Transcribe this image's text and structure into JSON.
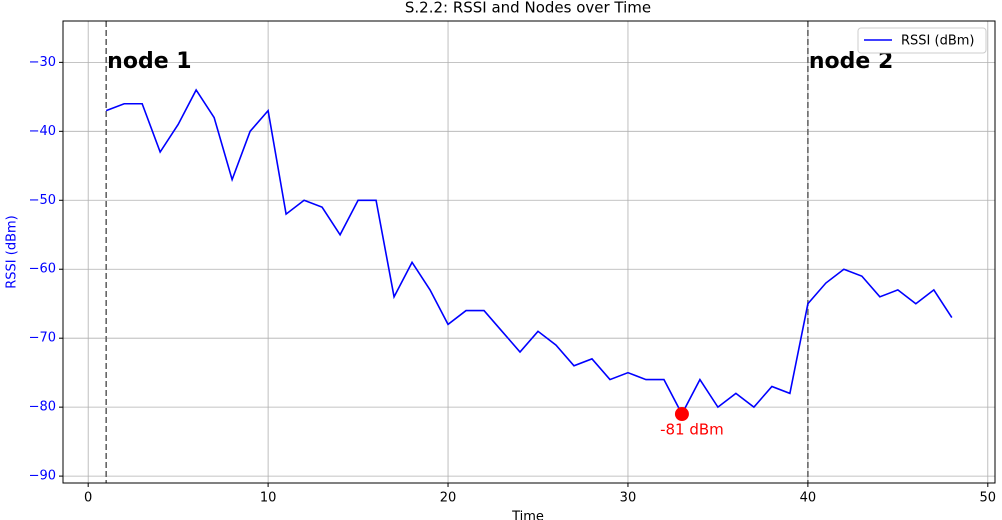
{
  "chart_data": {
    "type": "line",
    "title": "S.2.2: RSSI and Nodes over Time",
    "xlabel": "Time",
    "ylabel": "RSSI (dBm)",
    "x": [
      1,
      2,
      3,
      4,
      5,
      6,
      7,
      8,
      9,
      10,
      11,
      12,
      13,
      14,
      15,
      16,
      17,
      18,
      19,
      20,
      21,
      22,
      23,
      24,
      25,
      26,
      27,
      28,
      29,
      30,
      31,
      32,
      33,
      34,
      35,
      36,
      37,
      38,
      39,
      40,
      41,
      42,
      43,
      44,
      45,
      46,
      47,
      48
    ],
    "series": [
      {
        "name": "RSSI (dBm)",
        "color": "#0000ff",
        "values": [
          -37,
          -36,
          -36,
          -43,
          -39,
          -34,
          -38,
          -47,
          -40,
          -37,
          -52,
          -50,
          -51,
          -55,
          -50,
          -50,
          -64,
          -59,
          -63,
          -68,
          -66,
          -66,
          -69,
          -72,
          -69,
          -71,
          -74,
          -73,
          -76,
          -75,
          -76,
          -76,
          -81,
          -76,
          -80,
          -78,
          -80,
          -77,
          -78,
          -65,
          -62,
          -60,
          -61,
          -64,
          -63,
          -65,
          -63,
          -67
        ]
      }
    ],
    "xlim": [
      -1.4,
      50.4
    ],
    "ylim": [
      -91,
      -24
    ],
    "xticks": [
      0,
      10,
      20,
      30,
      40,
      50
    ],
    "yticks": [
      {
        "value": -90,
        "label": "−90"
      },
      {
        "value": -80,
        "label": "−80"
      },
      {
        "value": -70,
        "label": "−70"
      },
      {
        "value": -60,
        "label": "−60"
      },
      {
        "value": -50,
        "label": "−50"
      },
      {
        "value": -40,
        "label": "−40"
      },
      {
        "value": -30,
        "label": "−30"
      }
    ],
    "grid": true,
    "legend": "upper right",
    "vlines": [
      {
        "x": 1,
        "label": "node 1"
      },
      {
        "x": 40,
        "label": "node 2"
      }
    ],
    "highlight": {
      "x": 33,
      "y": -81,
      "label": "-81 dBm",
      "color": "#ff0000"
    }
  }
}
